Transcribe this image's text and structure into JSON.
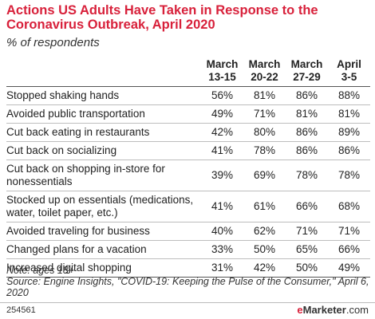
{
  "chart_data": {
    "type": "table",
    "title": "Actions US Adults Have Taken in Response to the Coronavirus Outbreak, April 2020",
    "subtitle": "% of respondents",
    "columns": [
      {
        "line1": "March",
        "line2": "13-15"
      },
      {
        "line1": "March",
        "line2": "20-22"
      },
      {
        "line1": "March",
        "line2": "27-29"
      },
      {
        "line1": "April",
        "line2": "3-5"
      }
    ],
    "rows": [
      {
        "label": "Stopped shaking hands",
        "values": [
          "56%",
          "81%",
          "86%",
          "88%"
        ]
      },
      {
        "label": "Avoided public transportation",
        "values": [
          "49%",
          "71%",
          "81%",
          "81%"
        ]
      },
      {
        "label": "Cut back eating in restaurants",
        "values": [
          "42%",
          "80%",
          "86%",
          "89%"
        ]
      },
      {
        "label": "Cut back on socializing",
        "values": [
          "41%",
          "78%",
          "86%",
          "86%"
        ]
      },
      {
        "label": "Cut back on shopping in-store for nonessentials",
        "values": [
          "39%",
          "69%",
          "78%",
          "78%"
        ]
      },
      {
        "label": "Stocked up on essentials (medications, water, toilet paper, etc.)",
        "values": [
          "41%",
          "61%",
          "66%",
          "68%"
        ]
      },
      {
        "label": "Avoided traveling for business",
        "values": [
          "40%",
          "62%",
          "71%",
          "71%"
        ]
      },
      {
        "label": "Changed plans for a vacation",
        "values": [
          "33%",
          "50%",
          "65%",
          "66%"
        ]
      },
      {
        "label": "Increased digital shopping",
        "values": [
          "31%",
          "42%",
          "50%",
          "49%"
        ]
      }
    ],
    "note": "Note: ages 18+",
    "source": "Source: Engine Insights, \"COVID-19: Keeping the Pulse of the Consumer,\" April 6, 2020"
  },
  "footer": {
    "chart_id": "254561",
    "brand_e": "e",
    "brand_name": "Marketer",
    "brand_suffix": ".com"
  },
  "colors": {
    "accent": "#d8213b",
    "text": "#222222"
  }
}
